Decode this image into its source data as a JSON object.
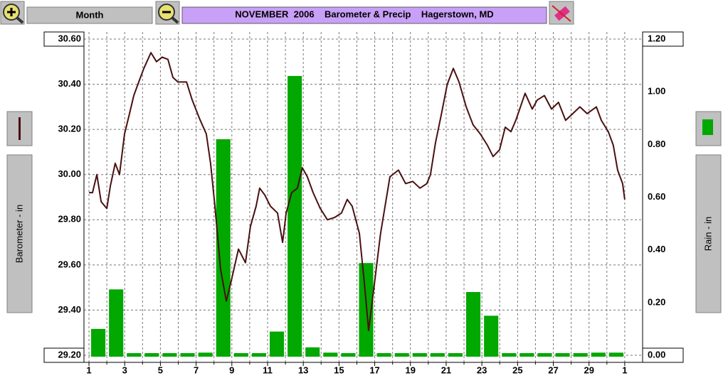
{
  "toolbar": {
    "period": "Month"
  },
  "chart_data": {
    "type": "combo",
    "title": "NOVEMBER  2006    Barometer & Precip    Hagerstown, MD",
    "ylabel": "Barometer - in",
    "y2label": "Rain - in",
    "xlim": [
      0.72,
      32
    ],
    "xticks": [
      1,
      3,
      5,
      7,
      9,
      11,
      13,
      15,
      17,
      19,
      21,
      23,
      25,
      27,
      29,
      {
        "value": 31,
        "label": "1"
      }
    ],
    "xminor": [
      2,
      4,
      6,
      8,
      10,
      12,
      14,
      16,
      18,
      20,
      22,
      24,
      26,
      28,
      30
    ],
    "ylim": [
      29.2,
      30.6
    ],
    "yticks": [
      {
        "value": 29.2,
        "label": "29.20"
      },
      {
        "value": 29.4,
        "label": "29.40"
      },
      {
        "value": 29.6,
        "label": "29.60"
      },
      {
        "value": 29.8,
        "label": "29.80"
      },
      {
        "value": 30.0,
        "label": "30.00"
      },
      {
        "value": 30.2,
        "label": "30.20"
      },
      {
        "value": 30.4,
        "label": "30.40"
      },
      {
        "value": 30.6,
        "label": "30.60"
      }
    ],
    "y2lim": [
      0,
      1.2
    ],
    "y2ticks": [
      {
        "value": 0,
        "label": "0.00"
      },
      {
        "value": 0.2,
        "label": "0.20"
      },
      {
        "value": 0.4,
        "label": "0.40"
      },
      {
        "value": 0.6,
        "label": "0.60"
      },
      {
        "value": 0.8,
        "label": "0.80"
      },
      {
        "value": 1.0,
        "label": "1.00"
      },
      {
        "value": 1.2,
        "label": "1.20"
      }
    ],
    "grid": true,
    "series": [
      {
        "type": "bar",
        "axis": "y2",
        "color": "#00a800",
        "x": [
          1,
          2,
          3,
          4,
          5,
          6,
          7,
          8,
          9,
          10,
          11,
          12,
          13,
          14,
          15,
          16,
          17,
          18,
          19,
          20,
          21,
          22,
          23,
          24,
          25,
          26,
          27,
          28,
          29,
          30
        ],
        "values": [
          0.1,
          0.25,
          0,
          0,
          0,
          0,
          0.01,
          0.82,
          0,
          0,
          0.09,
          1.06,
          0.03,
          0.01,
          0,
          0.35,
          0,
          0,
          0,
          0,
          0,
          0.24,
          0.15,
          0,
          0,
          0,
          0,
          0,
          0.01,
          0.01
        ]
      },
      {
        "type": "line",
        "color": "#4a1010",
        "x": [
          1.0,
          1.2,
          1.44,
          1.68,
          2.0,
          2.2,
          2.47,
          2.71,
          2.99,
          3.27,
          3.51,
          3.79,
          4.07,
          4.47,
          4.78,
          5.1,
          5.42,
          5.7,
          5.98,
          6.46,
          6.78,
          7.18,
          7.57,
          7.81,
          8.05,
          8.37,
          8.69,
          8.97,
          9.37,
          9.76,
          10.04,
          10.36,
          10.56,
          10.84,
          11.16,
          11.56,
          11.84,
          12.04,
          12.35,
          12.67,
          12.95,
          13.23,
          13.55,
          13.95,
          14.35,
          14.75,
          15.14,
          15.46,
          15.74,
          16.14,
          16.42,
          16.66,
          16.94,
          17.33,
          17.85,
          18.33,
          18.73,
          19.13,
          19.53,
          19.92,
          20.12,
          20.4,
          20.74,
          21.06,
          21.4,
          21.72,
          22.12,
          22.51,
          22.91,
          23.31,
          23.63,
          23.99,
          24.31,
          24.63,
          24.9,
          25.42,
          25.82,
          26.1,
          26.5,
          26.9,
          27.29,
          27.69,
          28.09,
          28.49,
          28.89,
          29.41,
          29.69,
          30.08,
          30.36,
          30.6,
          30.88,
          31.0
        ],
        "values": [
          29.92,
          29.92,
          30.0,
          29.88,
          29.85,
          29.95,
          30.05,
          30.0,
          30.18,
          30.27,
          30.35,
          30.41,
          30.47,
          30.54,
          30.5,
          30.52,
          30.51,
          30.43,
          30.41,
          30.41,
          30.33,
          30.25,
          30.18,
          30.05,
          29.86,
          29.58,
          29.44,
          29.53,
          29.67,
          29.61,
          29.77,
          29.86,
          29.94,
          29.91,
          29.86,
          29.83,
          29.7,
          29.83,
          29.92,
          29.94,
          30.03,
          29.99,
          29.92,
          29.85,
          29.8,
          29.81,
          29.83,
          29.89,
          29.86,
          29.74,
          29.52,
          29.31,
          29.49,
          29.74,
          29.99,
          30.02,
          29.96,
          29.97,
          29.94,
          29.96,
          30.0,
          30.14,
          30.27,
          30.4,
          30.47,
          30.41,
          30.3,
          30.22,
          30.18,
          30.13,
          30.08,
          30.11,
          30.21,
          30.19,
          30.24,
          30.36,
          30.29,
          30.33,
          30.35,
          30.29,
          30.32,
          30.24,
          30.27,
          30.3,
          30.27,
          30.3,
          30.24,
          30.19,
          30.13,
          30.02,
          29.96,
          29.89
        ]
      }
    ]
  }
}
